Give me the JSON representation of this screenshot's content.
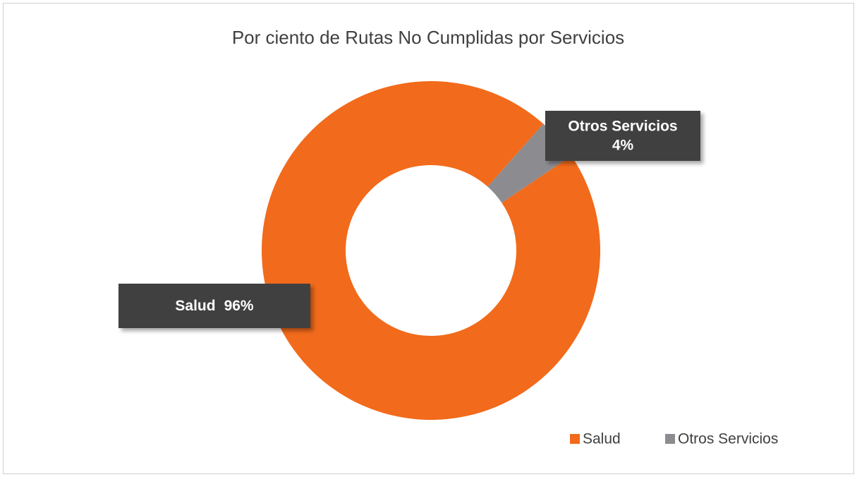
{
  "chart_data": {
    "type": "donut",
    "title": "Por ciento de Rutas No Cumplidas por Servicios",
    "categories": [
      "Salud",
      "Otros Servicios"
    ],
    "values": [
      96,
      4
    ],
    "value_labels": [
      "96%",
      "4%"
    ],
    "colors": [
      "#f26a1b",
      "#8c8c90"
    ],
    "start_angle": 56,
    "legend": "bottom-right"
  }
}
